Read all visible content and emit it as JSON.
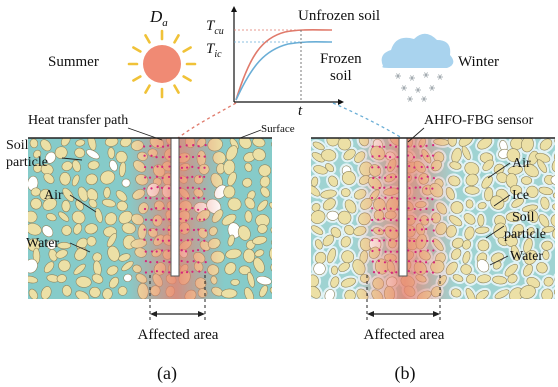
{
  "season": {
    "summer": "Summer",
    "winter": "Winter"
  },
  "inset": {
    "da": "D",
    "da_sub": "a",
    "tcu": "T",
    "tcu_sub": "cu",
    "tic": "T",
    "tic_sub": "ic",
    "t_axis": "t",
    "unfrozen": "Unfrozen soil",
    "frozen_l1": "Frozen",
    "frozen_l2": "soil"
  },
  "labels": {
    "heat_path": "Heat transfer path",
    "surface": "Surface",
    "sensor": "AHFO-FBG sensor",
    "soil_a_l1": "Soil",
    "soil_a_l2": "particle",
    "air_a": "Air",
    "water_a": "Water",
    "air_b": "Air",
    "ice_b": "Ice",
    "soil_b_l1": "Soil",
    "soil_b_l2": "particle",
    "water_b": "Water",
    "affected_a": "Affected area",
    "affected_b": "Affected area"
  },
  "panels": {
    "a": "(a)",
    "b": "(b)"
  },
  "colors": {
    "water": "#86cbc9",
    "ice": "#d7eef2",
    "particle": "#ece0a6",
    "heat": "#e7816e",
    "dots": "#d6247c",
    "sun": "#f08a74",
    "sun_rays": "#f0c238",
    "cloud": "#a9d3ee",
    "curve_unfrozen": "#e07a6b",
    "curve_frozen": "#6aaed6"
  }
}
